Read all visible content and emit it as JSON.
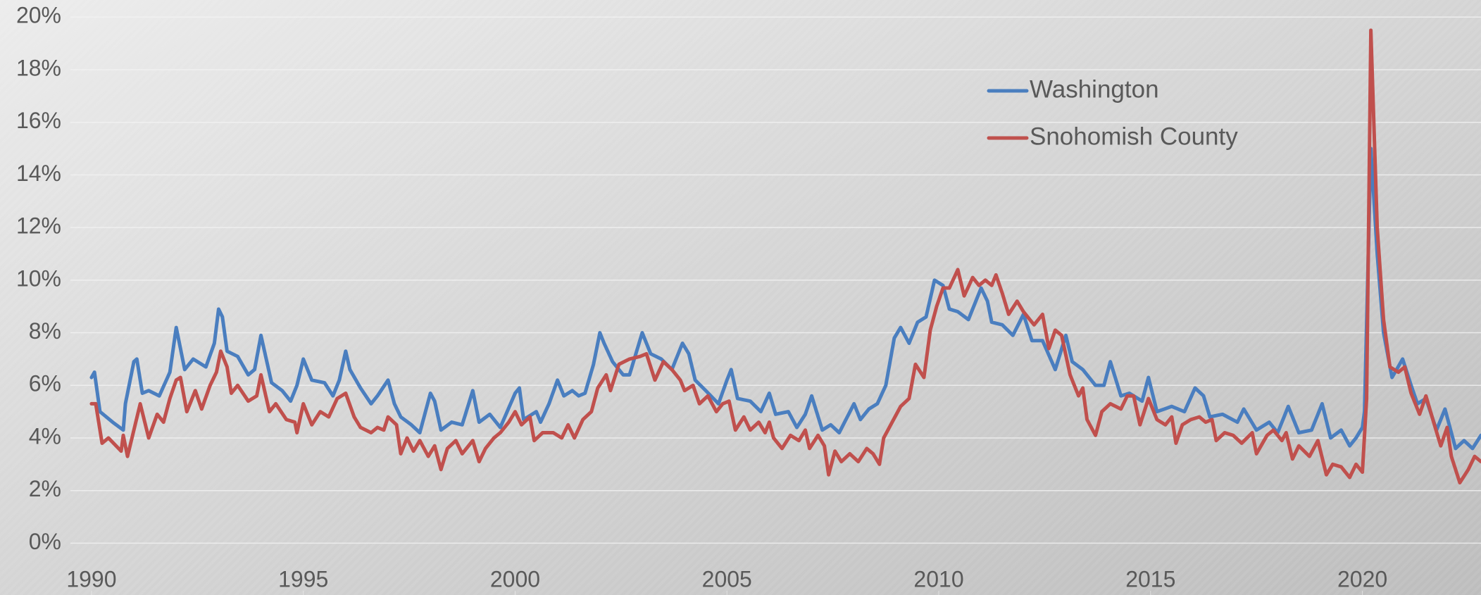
{
  "chart_data": {
    "type": "line",
    "xlim": [
      1987.84,
      2022.8
    ],
    "ylim": [
      -1.97,
      20.65
    ],
    "xticks": [
      1990,
      1995,
      2000,
      2005,
      2010,
      2015,
      2020
    ],
    "yticks": [
      {
        "value": 0,
        "label": "0%"
      },
      {
        "value": 2,
        "label": "2%"
      },
      {
        "value": 4,
        "label": "4%"
      },
      {
        "value": 6,
        "label": "6%"
      },
      {
        "value": 8,
        "label": "8%"
      },
      {
        "value": 10,
        "label": "10%"
      },
      {
        "value": 12,
        "label": "12%"
      },
      {
        "value": 14,
        "label": "14%"
      },
      {
        "value": 16,
        "label": "16%"
      },
      {
        "value": 18,
        "label": "18%"
      },
      {
        "value": 20,
        "label": "20%"
      }
    ],
    "grid": true,
    "legend": "upper right",
    "series": [
      {
        "name": "Washington",
        "color": "#4a7ebf",
        "x": [
          1990.0,
          1990.07,
          1990.2,
          1990.5,
          1990.75,
          1990.8,
          1991.0,
          1991.07,
          1991.2,
          1991.35,
          1991.6,
          1991.85,
          1992.0,
          1992.2,
          1992.4,
          1992.7,
          1992.9,
          1993.0,
          1993.09,
          1993.2,
          1993.45,
          1993.7,
          1993.85,
          1994.0,
          1994.25,
          1994.5,
          1994.7,
          1994.85,
          1995.0,
          1995.2,
          1995.5,
          1995.7,
          1995.85,
          1996.0,
          1996.1,
          1996.35,
          1996.6,
          1996.75,
          1997.0,
          1997.15,
          1997.3,
          1997.55,
          1997.75,
          1998.0,
          1998.1,
          1998.25,
          1998.5,
          1998.75,
          1999.0,
          1999.15,
          1999.4,
          1999.65,
          2000.0,
          2000.1,
          2000.2,
          2000.5,
          2000.6,
          2000.8,
          2001.0,
          2001.15,
          2001.35,
          2001.5,
          2001.65,
          2001.85,
          2002.0,
          2002.1,
          2002.3,
          2002.55,
          2002.7,
          2003.0,
          2003.2,
          2003.45,
          2003.7,
          2003.95,
          2004.1,
          2004.25,
          2004.5,
          2004.8,
          2005.0,
          2005.1,
          2005.25,
          2005.55,
          2005.8,
          2006.0,
          2006.15,
          2006.45,
          2006.65,
          2006.85,
          2007.0,
          2007.25,
          2007.45,
          2007.65,
          2008.0,
          2008.15,
          2008.35,
          2008.55,
          2008.75,
          2008.95,
          2009.1,
          2009.3,
          2009.5,
          2009.7,
          2009.9,
          2010.1,
          2010.25,
          2010.45,
          2010.7,
          2010.85,
          2011.0,
          2011.15,
          2011.25,
          2011.5,
          2011.75,
          2012.0,
          2012.2,
          2012.45,
          2012.75,
          2013.0,
          2013.15,
          2013.4,
          2013.7,
          2013.9,
          2014.05,
          2014.3,
          2014.5,
          2014.8,
          2014.95,
          2015.15,
          2015.5,
          2015.8,
          2016.05,
          2016.25,
          2016.4,
          2016.7,
          2017.05,
          2017.2,
          2017.5,
          2017.8,
          2018.0,
          2018.25,
          2018.5,
          2018.8,
          2019.05,
          2019.25,
          2019.5,
          2019.7,
          2019.85,
          2020.0,
          2020.05,
          2020.2,
          2020.35,
          2020.5,
          2020.7,
          2020.95,
          2021.15,
          2021.3,
          2021.5,
          2021.75,
          2021.95,
          2022.2,
          2022.4,
          2022.6,
          2022.8
        ],
        "values": [
          6.3,
          6.5,
          5.0,
          4.6,
          4.3,
          5.3,
          6.9,
          7.0,
          5.7,
          5.8,
          5.6,
          6.5,
          8.2,
          6.6,
          7.0,
          6.7,
          7.6,
          8.9,
          8.6,
          7.3,
          7.1,
          6.4,
          6.6,
          7.9,
          6.1,
          5.8,
          5.4,
          6.0,
          7.0,
          6.2,
          6.1,
          5.6,
          6.2,
          7.3,
          6.6,
          5.9,
          5.3,
          5.6,
          6.2,
          5.3,
          4.8,
          4.5,
          4.2,
          5.7,
          5.4,
          4.3,
          4.6,
          4.5,
          5.8,
          4.6,
          4.9,
          4.4,
          5.7,
          5.9,
          4.7,
          5.0,
          4.6,
          5.3,
          6.2,
          5.6,
          5.8,
          5.6,
          5.7,
          6.8,
          8.0,
          7.6,
          6.9,
          6.4,
          6.4,
          8.0,
          7.2,
          7.0,
          6.6,
          7.6,
          7.2,
          6.2,
          5.8,
          5.3,
          6.2,
          6.6,
          5.5,
          5.4,
          5.0,
          5.7,
          4.9,
          5.0,
          4.4,
          4.9,
          5.6,
          4.3,
          4.5,
          4.2,
          5.3,
          4.7,
          5.1,
          5.3,
          6.0,
          7.8,
          8.2,
          7.6,
          8.4,
          8.6,
          10.0,
          9.8,
          8.9,
          8.8,
          8.5,
          9.1,
          9.7,
          9.2,
          8.4,
          8.3,
          7.9,
          8.7,
          7.7,
          7.7,
          6.6,
          7.9,
          6.9,
          6.6,
          6.0,
          6.0,
          6.9,
          5.6,
          5.7,
          5.4,
          6.3,
          5.0,
          5.2,
          5.0,
          5.9,
          5.6,
          4.8,
          4.9,
          4.6,
          5.1,
          4.3,
          4.6,
          4.2,
          5.2,
          4.2,
          4.3,
          5.3,
          4.0,
          4.3,
          3.7,
          4.0,
          4.4,
          5.0,
          15.0,
          11.0,
          8.0,
          6.3,
          7.0,
          6.0,
          5.3,
          5.5,
          4.3,
          5.1,
          3.6,
          3.9,
          3.6,
          4.1
        ]
      },
      {
        "name": "Snohomish County",
        "color": "#c0504d",
        "x": [
          1990.0,
          1990.1,
          1990.25,
          1990.4,
          1990.7,
          1990.75,
          1990.85,
          1991.0,
          1991.15,
          1991.35,
          1991.55,
          1991.7,
          1991.85,
          1992.0,
          1992.1,
          1992.25,
          1992.45,
          1992.6,
          1992.8,
          1992.95,
          1993.05,
          1993.2,
          1993.3,
          1993.45,
          1993.7,
          1993.9,
          1994.0,
          1994.2,
          1994.35,
          1994.6,
          1994.8,
          1994.85,
          1995.0,
          1995.2,
          1995.4,
          1995.6,
          1995.8,
          1996.0,
          1996.2,
          1996.35,
          1996.6,
          1996.75,
          1996.9,
          1997.0,
          1997.2,
          1997.3,
          1997.45,
          1997.6,
          1997.75,
          1997.95,
          1998.1,
          1998.25,
          1998.4,
          1998.6,
          1998.75,
          1999.0,
          1999.15,
          1999.3,
          1999.5,
          1999.65,
          1999.85,
          2000.0,
          2000.15,
          2000.35,
          2000.45,
          2000.65,
          2000.9,
          2001.1,
          2001.25,
          2001.4,
          2001.6,
          2001.8,
          2001.95,
          2002.15,
          2002.25,
          2002.45,
          2002.7,
          2002.95,
          2003.1,
          2003.3,
          2003.5,
          2003.7,
          2003.9,
          2004.0,
          2004.2,
          2004.35,
          2004.55,
          2004.75,
          2004.9,
          2005.05,
          2005.2,
          2005.4,
          2005.55,
          2005.75,
          2005.9,
          2006.0,
          2006.1,
          2006.3,
          2006.5,
          2006.7,
          2006.85,
          2006.95,
          2007.15,
          2007.3,
          2007.4,
          2007.55,
          2007.7,
          2007.9,
          2008.1,
          2008.3,
          2008.45,
          2008.6,
          2008.7,
          2008.9,
          2009.1,
          2009.3,
          2009.45,
          2009.65,
          2009.8,
          2009.95,
          2010.1,
          2010.25,
          2010.45,
          2010.6,
          2010.8,
          2010.95,
          2011.1,
          2011.25,
          2011.35,
          2011.5,
          2011.65,
          2011.85,
          2012.0,
          2012.25,
          2012.45,
          2012.6,
          2012.75,
          2012.9,
          2013.1,
          2013.3,
          2013.4,
          2013.5,
          2013.7,
          2013.85,
          2014.05,
          2014.3,
          2014.45,
          2014.6,
          2014.75,
          2014.95,
          2015.15,
          2015.35,
          2015.5,
          2015.6,
          2015.75,
          2015.95,
          2016.15,
          2016.3,
          2016.45,
          2016.55,
          2016.75,
          2016.95,
          2017.15,
          2017.4,
          2017.5,
          2017.75,
          2017.9,
          2018.1,
          2018.2,
          2018.35,
          2018.5,
          2018.75,
          2018.95,
          2019.15,
          2019.3,
          2019.5,
          2019.7,
          2019.85,
          2020.0,
          2020.1,
          2020.2,
          2020.35,
          2020.5,
          2020.65,
          2020.85,
          2021.0,
          2021.15,
          2021.35,
          2021.5,
          2021.7,
          2021.85,
          2022.0,
          2022.1,
          2022.3,
          2022.5,
          2022.65,
          2022.8
        ],
        "values": [
          5.3,
          5.3,
          3.8,
          4.0,
          3.5,
          4.1,
          3.3,
          4.3,
          5.3,
          4.0,
          4.9,
          4.6,
          5.5,
          6.2,
          6.3,
          5.0,
          5.8,
          5.1,
          6.0,
          6.5,
          7.3,
          6.7,
          5.7,
          6.0,
          5.4,
          5.6,
          6.4,
          5.0,
          5.3,
          4.7,
          4.6,
          4.2,
          5.3,
          4.5,
          5.0,
          4.8,
          5.5,
          5.7,
          4.8,
          4.4,
          4.2,
          4.4,
          4.3,
          4.8,
          4.5,
          3.4,
          4.0,
          3.5,
          3.9,
          3.3,
          3.7,
          2.8,
          3.6,
          3.9,
          3.4,
          3.9,
          3.1,
          3.6,
          4.0,
          4.2,
          4.6,
          5.0,
          4.5,
          4.8,
          3.9,
          4.2,
          4.2,
          4.0,
          4.5,
          4.0,
          4.7,
          5.0,
          5.9,
          6.4,
          5.8,
          6.8,
          7.0,
          7.1,
          7.2,
          6.2,
          6.9,
          6.6,
          6.2,
          5.8,
          6.0,
          5.3,
          5.6,
          5.0,
          5.3,
          5.4,
          4.3,
          4.8,
          4.3,
          4.6,
          4.2,
          4.6,
          4.0,
          3.6,
          4.1,
          3.9,
          4.3,
          3.6,
          4.1,
          3.7,
          2.6,
          3.5,
          3.1,
          3.4,
          3.1,
          3.6,
          3.4,
          3.0,
          4.0,
          4.6,
          5.2,
          5.5,
          6.8,
          6.3,
          8.1,
          9.0,
          9.7,
          9.7,
          10.4,
          9.4,
          10.1,
          9.8,
          10.0,
          9.8,
          10.2,
          9.5,
          8.7,
          9.2,
          8.8,
          8.3,
          8.7,
          7.4,
          8.1,
          7.9,
          6.4,
          5.6,
          5.9,
          4.7,
          4.1,
          5.0,
          5.3,
          5.1,
          5.6,
          5.6,
          4.5,
          5.5,
          4.7,
          4.5,
          4.8,
          3.8,
          4.5,
          4.7,
          4.8,
          4.6,
          4.7,
          3.9,
          4.2,
          4.1,
          3.8,
          4.2,
          3.4,
          4.1,
          4.3,
          3.9,
          4.2,
          3.2,
          3.7,
          3.3,
          3.9,
          2.6,
          3.0,
          2.9,
          2.5,
          3.0,
          2.7,
          5.5,
          19.5,
          12.0,
          8.5,
          6.7,
          6.5,
          6.7,
          5.7,
          4.9,
          5.6,
          4.5,
          3.7,
          4.4,
          3.3,
          2.3,
          2.8,
          3.3,
          3.1
        ]
      }
    ]
  }
}
